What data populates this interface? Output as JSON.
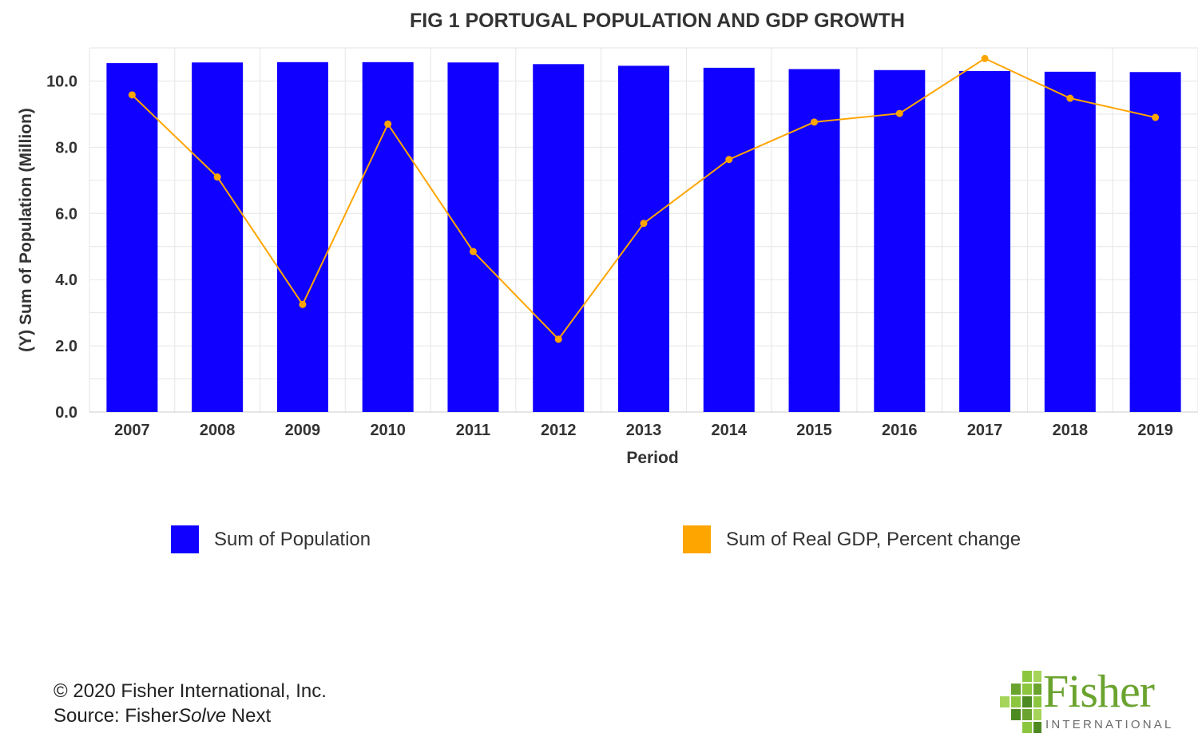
{
  "chart_data": {
    "type": "bar",
    "title": "FIG 1 PORTUGAL POPULATION AND GDP GROWTH",
    "xlabel": "Period",
    "ylabel": "(Y) Sum of Population (Million)",
    "categories": [
      "2007",
      "2008",
      "2009",
      "2010",
      "2011",
      "2012",
      "2013",
      "2014",
      "2015",
      "2016",
      "2017",
      "2018",
      "2019"
    ],
    "ylim": [
      0,
      11
    ],
    "yticks": [
      "0.0",
      "2.0",
      "4.0",
      "6.0",
      "8.0",
      "10.0"
    ],
    "grid": true,
    "legend_position": "bottom",
    "series": [
      {
        "name": "Sum of Population",
        "type": "bar",
        "color": "#1000ff",
        "values": [
          10.54,
          10.56,
          10.57,
          10.57,
          10.56,
          10.51,
          10.46,
          10.4,
          10.36,
          10.33,
          10.3,
          10.28,
          10.27
        ]
      },
      {
        "name": "Sum of Real GDP, Percent change",
        "type": "line",
        "color": "#ffa500",
        "values": [
          9.58,
          7.1,
          3.25,
          8.7,
          4.85,
          2.2,
          5.7,
          7.63,
          8.76,
          9.02,
          10.68,
          9.48,
          8.9
        ]
      }
    ]
  },
  "footer": {
    "copyright": "© 2020 Fisher International, Inc.",
    "source_prefix": "Source: Fisher",
    "source_italic": "Solve",
    "source_suffix": " Next"
  },
  "logo": {
    "word": "Fisher",
    "sub": "INTERNATIONAL",
    "color": "#6aa32e"
  }
}
